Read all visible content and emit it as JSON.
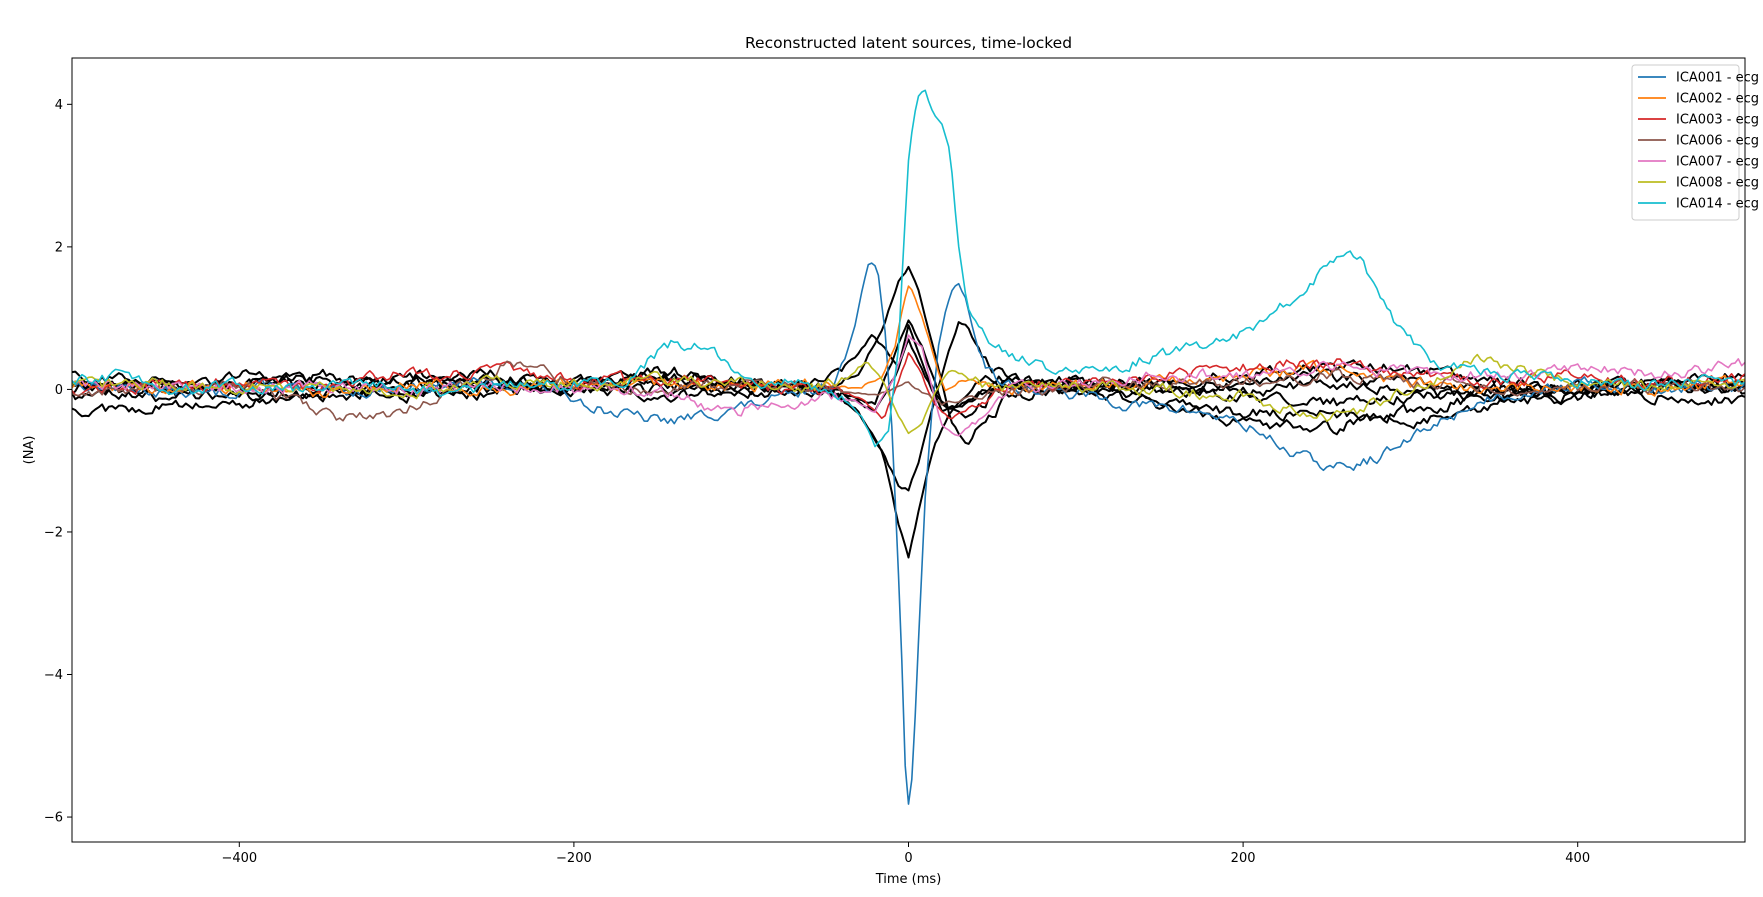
{
  "chart_data": {
    "type": "line",
    "title": "Reconstructed latent sources, time-locked",
    "xlabel": "Time (ms)",
    "ylabel": "(NA)",
    "xlim": [
      -500,
      500
    ],
    "ylim": [
      -6.35,
      4.65
    ],
    "xticks": [
      -400,
      -200,
      0,
      200,
      400
    ],
    "xtick_labels": [
      "−400",
      "−200",
      "0",
      "200",
      "400"
    ],
    "yticks": [
      -6,
      -4,
      -2,
      0,
      2,
      4
    ],
    "ytick_labels": [
      "−6",
      "−4",
      "−2",
      "0",
      "2",
      "4"
    ],
    "grid": false,
    "legend_position": "top-right",
    "series": [
      {
        "name": "ICA001 - ecg",
        "color": "#1f77b4",
        "x": [
          -500,
          -460,
          -420,
          -380,
          -340,
          -300,
          -260,
          -220,
          -200,
          -180,
          -160,
          -145,
          -130,
          -110,
          -90,
          -70,
          -55,
          -45,
          -38,
          -32,
          -27,
          -24,
          -21,
          -18,
          -14,
          -10,
          -7,
          -4,
          -2,
          0,
          2,
          4,
          7,
          10,
          14,
          18,
          22,
          26,
          30,
          34,
          38,
          45,
          55,
          70,
          90,
          110,
          130,
          150,
          170,
          190,
          210,
          230,
          250,
          260,
          270,
          290,
          310,
          330,
          350,
          380,
          410,
          440,
          470,
          500
        ],
        "y": [
          0.08,
          0.0,
          -0.08,
          0.05,
          -0.05,
          0.03,
          0.08,
          0.05,
          -0.1,
          -0.3,
          -0.4,
          -0.45,
          -0.4,
          -0.3,
          -0.2,
          -0.1,
          0.0,
          0.1,
          0.4,
          0.9,
          1.5,
          1.78,
          1.82,
          1.6,
          0.8,
          -0.5,
          -2.0,
          -3.8,
          -5.3,
          -5.85,
          -5.5,
          -4.6,
          -3.0,
          -1.5,
          -0.3,
          0.6,
          1.1,
          1.4,
          1.48,
          1.3,
          0.9,
          0.4,
          0.1,
          0.0,
          -0.05,
          -0.1,
          -0.2,
          -0.25,
          -0.3,
          -0.4,
          -0.6,
          -0.9,
          -1.08,
          -1.1,
          -1.05,
          -0.85,
          -0.55,
          -0.3,
          -0.1,
          0.02,
          0.08,
          0.0,
          0.05,
          0.0
        ]
      },
      {
        "name": "ICA002 - ecg",
        "color": "#ff7f0e",
        "x": [
          -500,
          -450,
          -400,
          -350,
          -300,
          -250,
          -200,
          -150,
          -100,
          -60,
          -30,
          -15,
          -8,
          -3,
          0,
          3,
          7,
          12,
          17,
          22,
          30,
          40,
          60,
          100,
          150,
          200,
          250,
          300,
          350,
          400,
          450,
          500
        ],
        "y": [
          0.05,
          0.0,
          0.05,
          -0.05,
          0.1,
          0.0,
          0.05,
          0.1,
          0.05,
          0.1,
          0.0,
          0.2,
          0.6,
          1.2,
          1.45,
          1.35,
          1.1,
          0.7,
          0.3,
          0.0,
          0.1,
          0.15,
          0.0,
          0.05,
          0.1,
          0.2,
          0.3,
          0.1,
          0.0,
          0.05,
          0.0,
          0.1
        ]
      },
      {
        "name": "ICA003 - ecg",
        "color": "#d62728",
        "x": [
          -500,
          -450,
          -400,
          -350,
          -300,
          -275,
          -250,
          -200,
          -150,
          -100,
          -60,
          -30,
          -15,
          -8,
          0,
          8,
          15,
          25,
          40,
          60,
          100,
          150,
          200,
          250,
          300,
          350,
          400,
          450,
          500
        ],
        "y": [
          0.0,
          0.05,
          0.1,
          0.05,
          0.25,
          0.2,
          0.3,
          0.1,
          0.15,
          0.1,
          0.0,
          -0.1,
          -0.4,
          0.0,
          0.5,
          0.2,
          -0.2,
          -0.4,
          -0.2,
          0.05,
          0.1,
          0.2,
          0.3,
          0.4,
          0.2,
          0.1,
          0.2,
          0.1,
          0.15
        ]
      },
      {
        "name": "ICA006 - ecg",
        "color": "#8c564b",
        "x": [
          -500,
          -450,
          -400,
          -360,
          -340,
          -320,
          -300,
          -280,
          -260,
          -240,
          -220,
          -200,
          -150,
          -100,
          -50,
          -20,
          0,
          20,
          40,
          80,
          120,
          160,
          200,
          250,
          300,
          350,
          400,
          450,
          500
        ],
        "y": [
          -0.05,
          0.0,
          0.05,
          -0.2,
          -0.4,
          -0.38,
          -0.3,
          -0.05,
          0.1,
          0.35,
          0.25,
          0.1,
          0.0,
          0.1,
          0.0,
          -0.1,
          0.1,
          -0.2,
          -0.1,
          0.0,
          0.1,
          0.05,
          0.1,
          0.2,
          0.1,
          0.05,
          0.0,
          0.05,
          0.0
        ]
      },
      {
        "name": "ICA007 - ecg",
        "color": "#e377c2",
        "x": [
          -500,
          -450,
          -400,
          -350,
          -300,
          -250,
          -200,
          -150,
          -120,
          -100,
          -80,
          -60,
          -40,
          -20,
          -8,
          0,
          8,
          20,
          30,
          45,
          60,
          100,
          150,
          200,
          250,
          300,
          350,
          400,
          450,
          500
        ],
        "y": [
          0.1,
          0.05,
          0.0,
          0.05,
          0.0,
          0.05,
          0.0,
          0.0,
          -0.25,
          -0.3,
          -0.2,
          -0.15,
          -0.1,
          -0.3,
          0.2,
          0.75,
          0.6,
          -0.5,
          -0.65,
          -0.3,
          0.0,
          0.1,
          0.2,
          0.2,
          0.3,
          0.25,
          0.2,
          0.3,
          0.2,
          0.35
        ]
      },
      {
        "name": "ICA008 - ecg",
        "color": "#bcbd22",
        "x": [
          -500,
          -450,
          -400,
          -350,
          -300,
          -250,
          -200,
          -150,
          -100,
          -60,
          -40,
          -25,
          -15,
          -8,
          0,
          8,
          15,
          25,
          40,
          60,
          100,
          150,
          200,
          240,
          260,
          280,
          300,
          320,
          340,
          360,
          400,
          450,
          500
        ],
        "y": [
          0.05,
          0.1,
          0.0,
          0.05,
          -0.05,
          0.1,
          0.05,
          0.15,
          0.1,
          0.0,
          0.1,
          0.4,
          0.1,
          -0.3,
          -0.6,
          -0.45,
          -0.1,
          0.3,
          0.1,
          0.0,
          0.05,
          0.0,
          -0.1,
          -0.35,
          -0.4,
          -0.2,
          0.0,
          0.2,
          0.4,
          0.3,
          0.1,
          0.05,
          0.1
        ]
      },
      {
        "name": "ICA014 - ecg",
        "color": "#17becf",
        "x": [
          -500,
          -470,
          -440,
          -400,
          -360,
          -320,
          -280,
          -240,
          -200,
          -170,
          -150,
          -140,
          -130,
          -120,
          -110,
          -100,
          -80,
          -60,
          -40,
          -28,
          -20,
          -12,
          -6,
          -3,
          0,
          3,
          6,
          10,
          15,
          20,
          25,
          30,
          35,
          40,
          45,
          55,
          70,
          90,
          110,
          130,
          150,
          170,
          190,
          210,
          230,
          250,
          260,
          265,
          270,
          280,
          290,
          300,
          310,
          320,
          340,
          360,
          380,
          400,
          430,
          460,
          500
        ],
        "y": [
          0.1,
          0.2,
          0.0,
          0.05,
          0.0,
          0.1,
          -0.05,
          0.05,
          0.1,
          0.1,
          0.5,
          0.65,
          0.6,
          0.6,
          0.4,
          0.2,
          0.1,
          0.05,
          -0.1,
          -0.4,
          -0.8,
          -0.6,
          0.6,
          2.0,
          3.2,
          3.8,
          4.1,
          4.2,
          3.85,
          3.7,
          3.3,
          2.0,
          1.2,
          0.9,
          0.75,
          0.6,
          0.4,
          0.2,
          0.25,
          0.35,
          0.5,
          0.6,
          0.7,
          0.9,
          1.3,
          1.7,
          1.82,
          1.9,
          1.8,
          1.4,
          1.0,
          0.7,
          0.45,
          0.35,
          0.25,
          0.2,
          0.15,
          0.1,
          0.05,
          0.1,
          0.1
        ]
      },
      {
        "color": "#000000",
        "x": [
          -500,
          -450,
          -400,
          -350,
          -300,
          -250,
          -200,
          -150,
          -100,
          -50,
          -30,
          -15,
          -6,
          0,
          6,
          15,
          25,
          35,
          45,
          60,
          100,
          150,
          200,
          250,
          300,
          350,
          400,
          450,
          500
        ],
        "y": [
          -0.3,
          -0.25,
          -0.2,
          -0.1,
          0.0,
          0.05,
          0.1,
          0.2,
          0.1,
          0.0,
          -0.3,
          -0.9,
          -1.9,
          -2.35,
          -1.7,
          -0.8,
          -0.3,
          -0.05,
          0.1,
          0.2,
          0.1,
          0.05,
          -0.1,
          -0.2,
          -0.1,
          0.0,
          0.05,
          -0.1,
          -0.15
        ]
      },
      {
        "color": "#000000",
        "x": [
          -500,
          -450,
          -400,
          -350,
          -300,
          -250,
          -200,
          -150,
          -100,
          -50,
          -30,
          -15,
          -6,
          0,
          6,
          15,
          25,
          35,
          45,
          60,
          100,
          150,
          200,
          250,
          300,
          350,
          400,
          450,
          500
        ],
        "y": [
          0.2,
          0.1,
          0.05,
          0.2,
          0.1,
          0.0,
          0.05,
          -0.1,
          0.0,
          0.05,
          0.2,
          0.9,
          1.5,
          1.72,
          1.4,
          0.6,
          -0.4,
          -0.8,
          -0.5,
          -0.1,
          0.05,
          0.1,
          0.2,
          0.35,
          0.3,
          0.1,
          0.05,
          0.1,
          0.2
        ]
      },
      {
        "color": "#000000",
        "x": [
          -500,
          -450,
          -400,
          -350,
          -300,
          -250,
          -200,
          -150,
          -100,
          -50,
          -30,
          -15,
          -6,
          0,
          6,
          15,
          25,
          30,
          35,
          45,
          60,
          100,
          150,
          200,
          250,
          300,
          350,
          400,
          450,
          500
        ],
        "y": [
          -0.1,
          0.0,
          0.1,
          0.05,
          0.2,
          0.1,
          0.0,
          0.3,
          0.1,
          0.0,
          -0.3,
          -0.9,
          -1.35,
          -1.4,
          -1.0,
          -0.2,
          0.6,
          0.95,
          0.9,
          0.4,
          0.1,
          0.0,
          -0.2,
          -0.45,
          -0.55,
          -0.3,
          -0.1,
          0.05,
          0.1,
          0.0
        ]
      },
      {
        "color": "#000000",
        "x": [
          -500,
          -450,
          -400,
          -350,
          -300,
          -250,
          -200,
          -150,
          -100,
          -50,
          -30,
          -22,
          -15,
          -6,
          0,
          6,
          15,
          25,
          40,
          60,
          100,
          150,
          200,
          250,
          300,
          350,
          400,
          450,
          500
        ],
        "y": [
          0.05,
          -0.1,
          0.2,
          0.1,
          -0.1,
          0.05,
          0.1,
          0.0,
          0.05,
          0.1,
          0.5,
          0.75,
          0.6,
          0.3,
          0.9,
          0.5,
          0.0,
          -0.3,
          -0.1,
          0.1,
          0.0,
          -0.2,
          -0.35,
          -0.3,
          -0.45,
          -0.2,
          -0.1,
          0.0,
          0.1
        ]
      },
      {
        "color": "#000000",
        "x": [
          -500,
          -450,
          -400,
          -350,
          -300,
          -250,
          -200,
          -150,
          -100,
          -50,
          -20,
          -8,
          0,
          8,
          20,
          35,
          60,
          100,
          150,
          200,
          250,
          300,
          350,
          400,
          450,
          500
        ],
        "y": [
          0.0,
          0.1,
          0.0,
          -0.1,
          0.1,
          0.2,
          0.0,
          0.1,
          -0.05,
          0.0,
          -0.2,
          0.5,
          1.0,
          0.6,
          -0.2,
          -0.4,
          0.1,
          0.05,
          0.0,
          0.1,
          0.2,
          0.1,
          0.0,
          -0.1,
          0.05,
          0.0
        ]
      },
      {
        "color": "#000000",
        "x": [
          -500,
          -450,
          -400,
          -350,
          -300,
          -250,
          -200,
          -150,
          -100,
          -50,
          -20,
          -8,
          0,
          8,
          20,
          35,
          60,
          100,
          150,
          200,
          250,
          300,
          350,
          400,
          450,
          500
        ],
        "y": [
          0.1,
          0.0,
          -0.1,
          0.05,
          0.0,
          -0.1,
          0.1,
          0.2,
          0.1,
          0.05,
          -0.3,
          0.2,
          0.7,
          0.3,
          -0.3,
          -0.2,
          0.05,
          0.1,
          0.0,
          -0.05,
          0.1,
          0.0,
          -0.15,
          0.0,
          0.1,
          0.05
        ]
      }
    ]
  }
}
